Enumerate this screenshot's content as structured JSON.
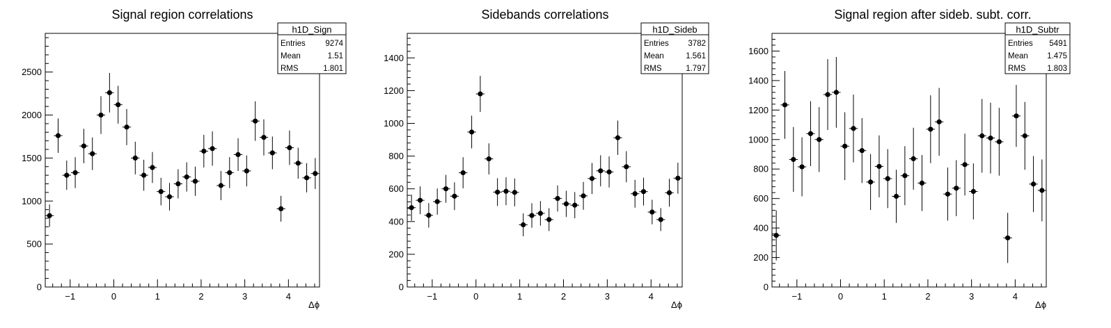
{
  "chart_data": [
    {
      "type": "scatter",
      "title": "Signal region correlations",
      "xlabel": "Δϕ",
      "ylabel": "",
      "xlim": [
        -1.571,
        4.712
      ],
      "ylim": [
        0,
        2950
      ],
      "xticks": [
        -1,
        0,
        1,
        2,
        3,
        4
      ],
      "yticks": [
        0,
        500,
        1000,
        1500,
        2000,
        2500
      ],
      "stats": {
        "name": "h1D_Sign",
        "rows": [
          [
            "Entries",
            "9274"
          ],
          [
            "Mean",
            "1.51"
          ],
          [
            "RMS",
            "1.801"
          ]
        ]
      },
      "series": [
        {
          "x": [
            -1.473,
            -1.276,
            -1.08,
            -0.884,
            -0.687,
            -0.491,
            -0.295,
            -0.098,
            0.098,
            0.295,
            0.491,
            0.687,
            0.884,
            1.08,
            1.276,
            1.473,
            1.669,
            1.865,
            2.062,
            2.258,
            2.454,
            2.651,
            2.847,
            3.043,
            3.24,
            3.436,
            3.633,
            3.829,
            4.025,
            4.222,
            4.418,
            4.614
          ],
          "y": [
            830,
            1760,
            1300,
            1330,
            1640,
            1550,
            2000,
            2260,
            2120,
            1860,
            1500,
            1300,
            1390,
            1110,
            1050,
            1200,
            1280,
            1230,
            1580,
            1610,
            1180,
            1330,
            1540,
            1350,
            1930,
            1740,
            1560,
            910,
            1620,
            1440,
            1270,
            1320
          ],
          "yerr": [
            130,
            200,
            170,
            180,
            200,
            190,
            220,
            230,
            220,
            210,
            190,
            180,
            180,
            160,
            160,
            170,
            170,
            170,
            190,
            200,
            170,
            180,
            190,
            180,
            230,
            210,
            190,
            150,
            200,
            180,
            170,
            180
          ]
        }
      ]
    },
    {
      "type": "scatter",
      "title": "Sidebands correlations",
      "xlabel": "Δϕ",
      "ylabel": "",
      "xlim": [
        -1.571,
        4.712
      ],
      "ylim": [
        0,
        1550
      ],
      "xticks": [
        -1,
        0,
        1,
        2,
        3,
        4
      ],
      "yticks": [
        0,
        200,
        400,
        600,
        800,
        1000,
        1200,
        1400
      ],
      "stats": {
        "name": "h1D_Sideb",
        "rows": [
          [
            "Entries",
            "3782"
          ],
          [
            "Mean",
            "1.561"
          ],
          [
            "RMS",
            "1.797"
          ]
        ]
      },
      "series": [
        {
          "x": [
            -1.473,
            -1.276,
            -1.08,
            -0.884,
            -0.687,
            -0.491,
            -0.295,
            -0.098,
            0.098,
            0.295,
            0.491,
            0.687,
            0.884,
            1.08,
            1.276,
            1.473,
            1.669,
            1.865,
            2.062,
            2.258,
            2.454,
            2.651,
            2.847,
            3.043,
            3.24,
            3.436,
            3.633,
            3.829,
            4.025,
            4.222,
            4.418,
            4.614
          ],
          "y": [
            485,
            530,
            438,
            522,
            600,
            555,
            698,
            947,
            1180,
            783,
            580,
            585,
            578,
            380,
            437,
            450,
            412,
            541,
            508,
            500,
            557,
            663,
            710,
            703,
            912,
            735,
            570,
            583,
            458,
            412,
            576,
            665
          ],
          "yerr": [
            80,
            85,
            75,
            80,
            85,
            85,
            95,
            100,
            110,
            95,
            85,
            85,
            85,
            70,
            75,
            75,
            70,
            80,
            80,
            80,
            85,
            95,
            95,
            95,
            105,
            95,
            85,
            85,
            75,
            70,
            85,
            95
          ]
        }
      ]
    },
    {
      "type": "scatter",
      "title": "Signal region after sideb. subt. corr.",
      "xlabel": "Δϕ",
      "ylabel": "",
      "xlim": [
        -1.571,
        4.712
      ],
      "ylim": [
        0,
        1720
      ],
      "xticks": [
        -1,
        0,
        1,
        2,
        3,
        4
      ],
      "yticks": [
        0,
        200,
        400,
        600,
        800,
        1000,
        1200,
        1400,
        1600
      ],
      "stats": {
        "name": "h1D_Subtr",
        "rows": [
          [
            "Entries",
            "5491"
          ],
          [
            "Mean",
            "1.475"
          ],
          [
            "RMS",
            "1.803"
          ]
        ]
      },
      "series": [
        {
          "x": [
            -1.473,
            -1.276,
            -1.08,
            -0.884,
            -0.687,
            -0.491,
            -0.295,
            -0.098,
            0.098,
            0.295,
            0.491,
            0.687,
            0.884,
            1.08,
            1.276,
            1.473,
            1.669,
            1.865,
            2.062,
            2.258,
            2.454,
            2.651,
            2.847,
            3.043,
            3.24,
            3.436,
            3.633,
            3.829,
            4.025,
            4.222,
            4.418,
            4.614
          ],
          "y": [
            350,
            1235,
            865,
            815,
            1040,
            1000,
            1305,
            1320,
            955,
            1075,
            925,
            712,
            818,
            735,
            615,
            755,
            870,
            705,
            1070,
            1120,
            630,
            670,
            830,
            648,
            1025,
            1010,
            985,
            333,
            1160,
            1025,
            698,
            655
          ],
          "yerr": [
            170,
            230,
            220,
            200,
            220,
            220,
            240,
            240,
            230,
            230,
            220,
            190,
            210,
            200,
            180,
            200,
            210,
            190,
            230,
            230,
            180,
            190,
            210,
            190,
            250,
            240,
            230,
            170,
            210,
            230,
            190,
            210
          ]
        }
      ]
    }
  ]
}
